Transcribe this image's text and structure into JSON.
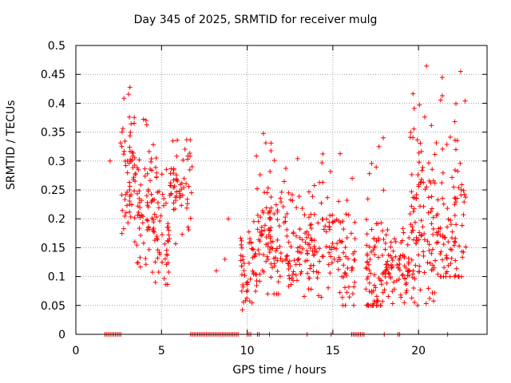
{
  "chart_data": {
    "type": "scatter",
    "title": "Day 345 of 2025, SRMTID for receiver mulg",
    "xlabel": "GPS time / hours",
    "ylabel": "SRMTID / TECUs",
    "xlim": [
      0,
      24
    ],
    "ylim": [
      0,
      0.5
    ],
    "x_ticks": [
      0,
      5,
      10,
      15,
      20
    ],
    "y_ticks": [
      0,
      0.05,
      0.1,
      0.15,
      0.2,
      0.25,
      0.3,
      0.35,
      0.4,
      0.45,
      0.5
    ],
    "grid": true,
    "marker": "+",
    "color": "#ff0000",
    "clusters": [
      {
        "x_start": 2.6,
        "x_end": 3.5,
        "y_min": 0.15,
        "y_max": 0.43,
        "y_center": 0.28,
        "count": 60
      },
      {
        "x_start": 3.5,
        "x_end": 4.5,
        "y_min": 0.1,
        "y_max": 0.39,
        "y_center": 0.22,
        "count": 60
      },
      {
        "x_start": 4.5,
        "x_end": 5.5,
        "y_min": 0.08,
        "y_max": 0.33,
        "y_center": 0.18,
        "count": 60
      },
      {
        "x_start": 5.5,
        "x_end": 6.8,
        "y_min": 0.15,
        "y_max": 0.34,
        "y_center": 0.25,
        "count": 60
      },
      {
        "x_start": 9.6,
        "x_end": 10.5,
        "y_min": 0.04,
        "y_max": 0.2,
        "y_center": 0.12,
        "count": 50
      },
      {
        "x_start": 10.5,
        "x_end": 12.5,
        "y_min": 0.07,
        "y_max": 0.37,
        "y_center": 0.16,
        "count": 120
      },
      {
        "x_start": 12.5,
        "x_end": 15.5,
        "y_min": 0.06,
        "y_max": 0.32,
        "y_center": 0.15,
        "count": 140
      },
      {
        "x_start": 15.5,
        "x_end": 16.3,
        "y_min": 0.05,
        "y_max": 0.28,
        "y_center": 0.12,
        "count": 40
      },
      {
        "x_start": 16.9,
        "x_end": 18.0,
        "y_min": 0.05,
        "y_max": 0.38,
        "y_center": 0.1,
        "count": 80
      },
      {
        "x_start": 18.0,
        "x_end": 19.5,
        "y_min": 0.05,
        "y_max": 0.19,
        "y_center": 0.12,
        "count": 80
      },
      {
        "x_start": 19.5,
        "x_end": 21.0,
        "y_min": 0.05,
        "y_max": 0.47,
        "y_center": 0.17,
        "count": 110
      },
      {
        "x_start": 21.0,
        "x_end": 22.8,
        "y_min": 0.1,
        "y_max": 0.46,
        "y_center": 0.2,
        "count": 100
      }
    ],
    "isolated_points": [
      {
        "x": 2.0,
        "y": 0.3
      },
      {
        "x": 8.2,
        "y": 0.11
      },
      {
        "x": 8.7,
        "y": 0.13
      },
      {
        "x": 8.9,
        "y": 0.2
      }
    ],
    "zero_segments": [
      [
        1.7,
        2.7
      ],
      [
        6.7,
        9.5
      ],
      [
        10.0,
        10.3
      ],
      [
        10.6,
        10.8
      ],
      [
        11.3,
        11.4
      ],
      [
        13.5,
        13.6
      ],
      [
        14.9,
        15.0
      ],
      [
        16.1,
        16.9
      ],
      [
        18.0,
        18.1
      ],
      [
        18.8,
        19.0
      ],
      [
        21.7,
        21.8
      ]
    ]
  }
}
